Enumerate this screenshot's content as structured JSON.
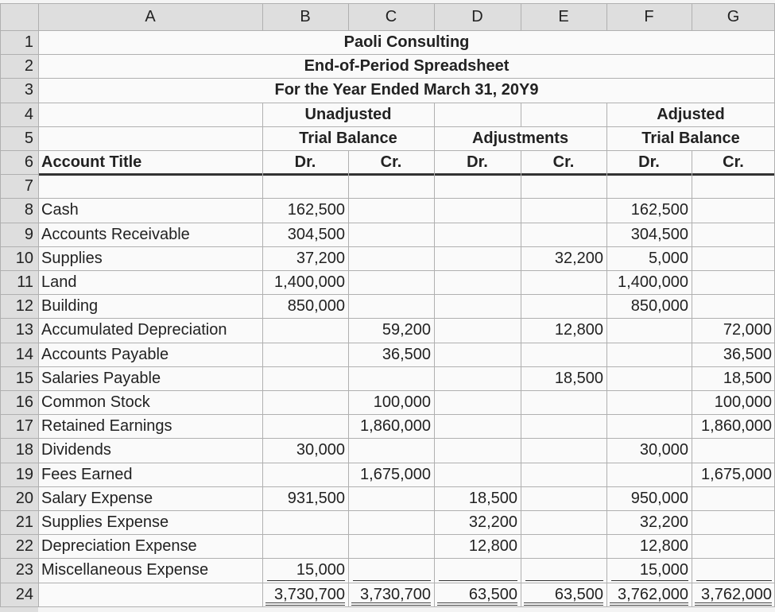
{
  "column_headers": [
    "A",
    "B",
    "C",
    "D",
    "E",
    "F",
    "G"
  ],
  "row_numbers": [
    1,
    2,
    3,
    4,
    5,
    6,
    7,
    8,
    9,
    10,
    11,
    12,
    13,
    14,
    15,
    16,
    17,
    18,
    19,
    20,
    21,
    22,
    23,
    24
  ],
  "title": {
    "company": "Paoli Consulting",
    "name": "End-of-Period Spreadsheet",
    "period": "For the Year Ended March 31, 20Y9"
  },
  "headers": {
    "unadjusted": "Unadjusted",
    "unadjusted_sub": "Trial Balance",
    "adjustments": "Adjustments",
    "adjusted": "Adjusted",
    "adjusted_sub": "Trial Balance",
    "account_title": "Account Title",
    "dr_cr": {
      "B": "Dr.",
      "C": "Cr.",
      "D": "Dr.",
      "E": "Cr.",
      "F": "Dr.",
      "G": "Cr."
    }
  },
  "accounts": [
    {
      "title": "Cash",
      "values": {
        "B": "162,500",
        "F": "162,500"
      }
    },
    {
      "title": "Accounts Receivable",
      "values": {
        "B": "304,500",
        "F": "304,500"
      }
    },
    {
      "title": "Supplies",
      "values": {
        "B": "37,200",
        "E": "32,200",
        "F": "5,000"
      }
    },
    {
      "title": "Land",
      "values": {
        "B": "1,400,000",
        "F": "1,400,000"
      }
    },
    {
      "title": "Building",
      "values": {
        "B": "850,000",
        "F": "850,000"
      }
    },
    {
      "title": "Accumulated Depreciation",
      "values": {
        "C": "59,200",
        "E": "12,800",
        "G": "72,000"
      }
    },
    {
      "title": "Accounts Payable",
      "values": {
        "C": "36,500",
        "G": "36,500"
      }
    },
    {
      "title": "Salaries Payable",
      "values": {
        "E": "18,500",
        "G": "18,500"
      }
    },
    {
      "title": "Common Stock",
      "values": {
        "C": "100,000",
        "G": "100,000"
      }
    },
    {
      "title": "Retained Earnings",
      "values": {
        "C": "1,860,000",
        "G": "1,860,000"
      }
    },
    {
      "title": "Dividends",
      "values": {
        "B": "30,000",
        "F": "30,000"
      }
    },
    {
      "title": "Fees Earned",
      "values": {
        "C": "1,675,000",
        "G": "1,675,000"
      }
    },
    {
      "title": "Salary Expense",
      "values": {
        "B": "931,500",
        "D": "18,500",
        "F": "950,000"
      }
    },
    {
      "title": "Supplies Expense",
      "values": {
        "D": "32,200",
        "F": "32,200"
      }
    },
    {
      "title": "Depreciation Expense",
      "values": {
        "D": "12,800",
        "F": "12,800"
      }
    },
    {
      "title": "Miscellaneous Expense",
      "values": {
        "B": "15,000",
        "F": "15,000"
      }
    }
  ],
  "totals": {
    "B": "3,730,700",
    "C": "3,730,700",
    "D": "63,500",
    "E": "63,500",
    "F": "3,762,000",
    "G": "3,762,000"
  }
}
